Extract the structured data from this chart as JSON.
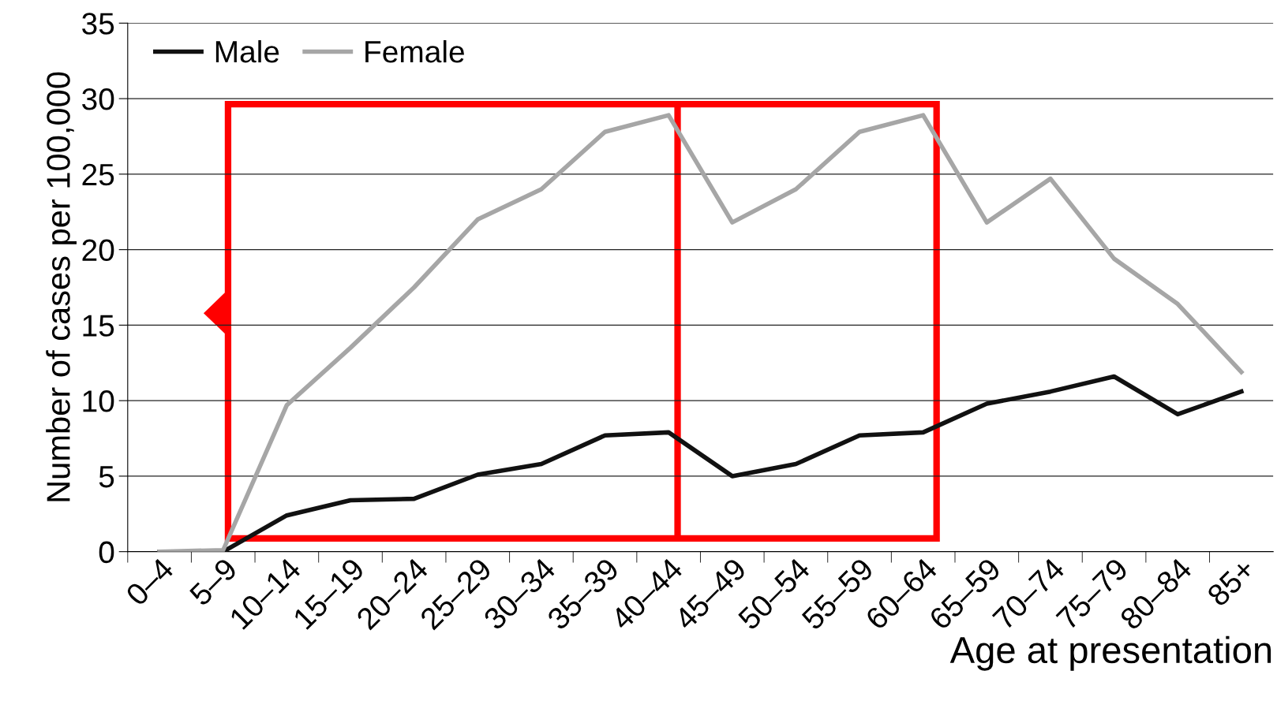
{
  "chart_data": {
    "type": "line",
    "xlabel": "Age at presentation",
    "ylabel": "Number of cases per 100,000",
    "categories": [
      "0–4",
      "5–9",
      "10–14",
      "15–19",
      "20–24",
      "25–29",
      "30–34",
      "35–39",
      "40–44",
      "45–49",
      "50–54",
      "55–59",
      "60–64",
      "65–59",
      "70–74",
      "75–79",
      "80–84",
      "85+"
    ],
    "series": [
      {
        "name": "Male",
        "color": "#111111",
        "values": [
          0,
          0,
          2.4,
          3.4,
          3.5,
          5.1,
          5.8,
          7.7,
          7.9,
          5.0,
          5.8,
          7.7,
          7.9,
          9.8,
          10.6,
          11.6,
          9.1,
          10.6
        ]
      },
      {
        "name": "Female",
        "color": "#a6a6a6",
        "values": [
          0,
          0.1,
          9.7,
          13.5,
          17.5,
          22,
          24,
          27.8,
          28.9,
          21.8,
          24,
          27.8,
          28.9,
          21.8,
          24.7,
          19.4,
          16.4,
          11.9
        ]
      }
    ],
    "ylim": [
      0,
      35
    ],
    "yticks": [
      0,
      5,
      10,
      15,
      20,
      25,
      30,
      35
    ],
    "grid": "y",
    "legend": "top left",
    "marker": "none",
    "line_style": "solid"
  }
}
